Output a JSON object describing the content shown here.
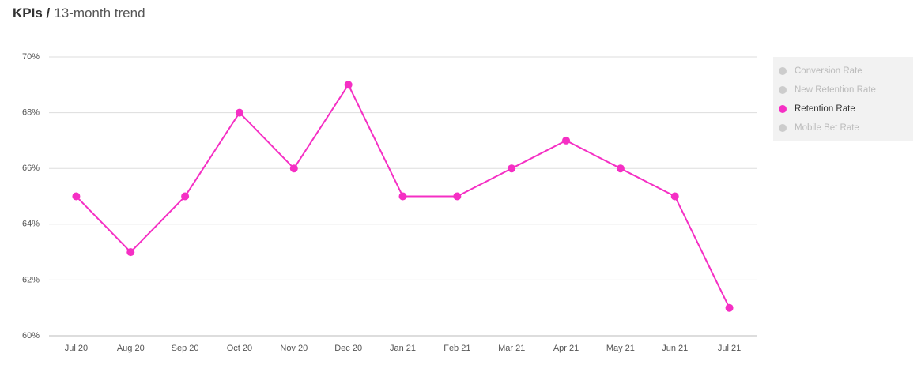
{
  "chart_data": {
    "type": "line",
    "title": "KPIs /",
    "subtitle": "13-month trend",
    "categories": [
      "Jul 20",
      "Aug 20",
      "Sep 20",
      "Oct 20",
      "Nov 20",
      "Dec 20",
      "Jan 21",
      "Feb 21",
      "Mar 21",
      "Apr 21",
      "May 21",
      "Jun 21",
      "Jul 21"
    ],
    "series": [
      {
        "name": "Conversion Rate",
        "color": "#cccccc",
        "visible": false
      },
      {
        "name": "New Retention Rate",
        "color": "#cccccc",
        "visible": false
      },
      {
        "name": "Retention Rate",
        "color": "#f52fc4",
        "visible": true,
        "values": [
          65,
          63,
          65,
          68,
          66,
          69,
          65,
          65,
          66,
          67,
          66,
          65,
          61
        ]
      },
      {
        "name": "Mobile Bet Rate",
        "color": "#cccccc",
        "visible": false
      }
    ],
    "ylim": [
      60,
      70
    ],
    "yticks": [
      {
        "value": 60,
        "label": "60%"
      },
      {
        "value": 62,
        "label": "62%"
      },
      {
        "value": 64,
        "label": "64%"
      },
      {
        "value": 66,
        "label": "66%"
      },
      {
        "value": 68,
        "label": "68%"
      },
      {
        "value": 70,
        "label": "70%"
      }
    ],
    "grid": true,
    "legend": "right"
  }
}
